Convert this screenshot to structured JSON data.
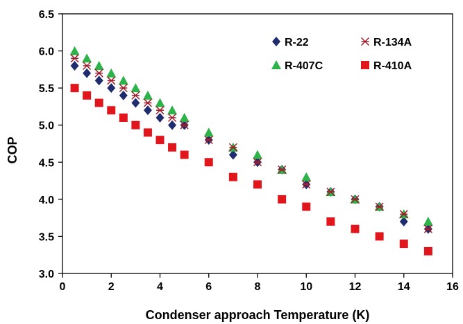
{
  "chart_data": {
    "type": "scatter",
    "xlabel": "Condenser approach Temperature (K)",
    "ylabel": "COP",
    "xlim": [
      0,
      16
    ],
    "ylim": [
      3.0,
      6.5
    ],
    "xticks": [
      0,
      2,
      4,
      6,
      8,
      10,
      12,
      14,
      16
    ],
    "yticks": [
      3.0,
      3.5,
      4.0,
      4.5,
      5.0,
      5.5,
      6.0,
      6.5
    ],
    "ytick_labels": [
      "3.0",
      "3.5",
      "4.0",
      "4.5",
      "5.0",
      "5.5",
      "6.0",
      "6.5"
    ],
    "grid": false,
    "legend_position": "top-right",
    "x": [
      0.5,
      1,
      1.5,
      2,
      2.5,
      3,
      3.5,
      4,
      4.5,
      5,
      6,
      7,
      8,
      9,
      10,
      11,
      12,
      13,
      14,
      15
    ],
    "series": [
      {
        "name": "R-22",
        "marker": "diamond",
        "color": "#1f2d6e",
        "values": [
          5.8,
          5.7,
          5.6,
          5.5,
          5.4,
          5.3,
          5.2,
          5.1,
          5.0,
          5.0,
          4.8,
          4.6,
          4.5,
          4.4,
          4.2,
          4.1,
          4.0,
          3.9,
          3.7,
          3.6
        ]
      },
      {
        "name": "R-134A",
        "marker": "star",
        "color": "#a11d2b",
        "values": [
          5.9,
          5.8,
          5.7,
          5.6,
          5.5,
          5.4,
          5.3,
          5.2,
          5.1,
          5.0,
          4.8,
          4.7,
          4.5,
          4.4,
          4.2,
          4.1,
          4.0,
          3.9,
          3.8,
          3.6
        ]
      },
      {
        "name": "R-407C",
        "marker": "triangle",
        "color": "#2db34a",
        "values": [
          6.0,
          5.9,
          5.8,
          5.7,
          5.6,
          5.5,
          5.4,
          5.3,
          5.2,
          5.1,
          4.9,
          4.7,
          4.6,
          4.4,
          4.3,
          4.1,
          4.0,
          3.9,
          3.8,
          3.7
        ]
      },
      {
        "name": "R-410A",
        "marker": "square",
        "color": "#e0161c",
        "values": [
          5.5,
          5.4,
          5.3,
          5.2,
          5.1,
          5.0,
          4.9,
          4.8,
          4.7,
          4.6,
          4.5,
          4.3,
          4.2,
          4.0,
          3.9,
          3.7,
          3.6,
          3.5,
          3.4,
          3.3
        ]
      }
    ]
  }
}
